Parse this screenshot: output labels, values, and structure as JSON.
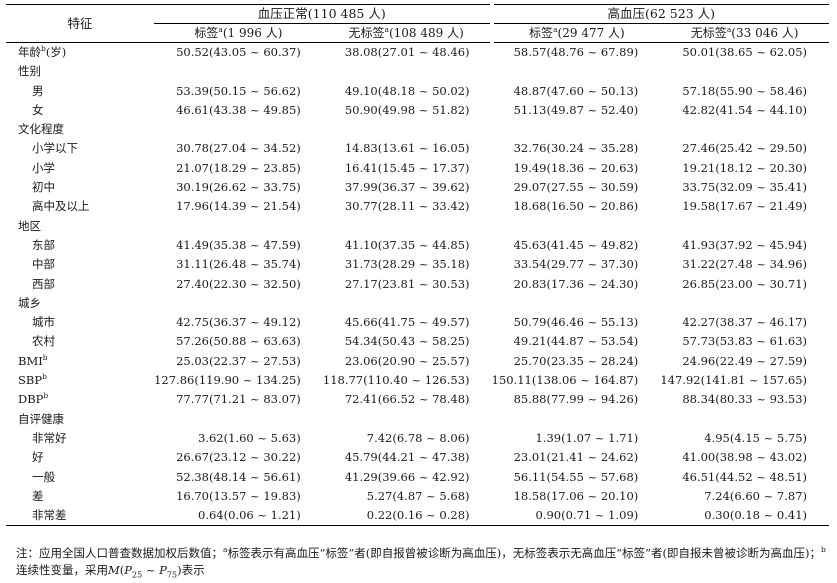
{
  "header": {
    "feature_label": "特征",
    "group_normal": "血压正常(110 485 人)",
    "group_high": "高血压(62 523 人)",
    "sub_cols": [
      {
        "text": "标签",
        "mark": "a",
        "count": "(1 996 人)"
      },
      {
        "text": "无标签",
        "mark": "a",
        "count": "(108 489 人)"
      },
      {
        "text": "标签",
        "mark": "a",
        "count": "(29 477 人)"
      },
      {
        "text": "无标签",
        "mark": "a",
        "count": "(33 046 人)"
      }
    ]
  },
  "rows": [
    {
      "label": "年龄",
      "sup": "b",
      "suffix": "(岁)",
      "indent": false,
      "values": [
        "50.52(43.05 ~ 60.37)",
        "38.08(27.01 ~ 48.46)",
        "58.57(48.76 ~ 67.89)",
        "50.01(38.65 ~ 62.05)"
      ]
    },
    {
      "label": "性别",
      "sup": "",
      "suffix": "",
      "indent": false,
      "values": [
        "",
        "",
        "",
        ""
      ]
    },
    {
      "label": "男",
      "sup": "",
      "suffix": "",
      "indent": true,
      "values": [
        "53.39(50.15 ~ 56.62)",
        "49.10(48.18 ~ 50.02)",
        "48.87(47.60 ~ 50.13)",
        "57.18(55.90 ~ 58.46)"
      ]
    },
    {
      "label": "女",
      "sup": "",
      "suffix": "",
      "indent": true,
      "values": [
        "46.61(43.38 ~ 49.85)",
        "50.90(49.98 ~ 51.82)",
        "51.13(49.87 ~ 52.40)",
        "42.82(41.54 ~ 44.10)"
      ]
    },
    {
      "label": "文化程度",
      "sup": "",
      "suffix": "",
      "indent": false,
      "values": [
        "",
        "",
        "",
        ""
      ]
    },
    {
      "label": "小学以下",
      "sup": "",
      "suffix": "",
      "indent": true,
      "values": [
        "30.78(27.04 ~ 34.52)",
        "14.83(13.61 ~ 16.05)",
        "32.76(30.24 ~ 35.28)",
        "27.46(25.42 ~ 29.50)"
      ]
    },
    {
      "label": "小学",
      "sup": "",
      "suffix": "",
      "indent": true,
      "values": [
        "21.07(18.29 ~ 23.85)",
        "16.41(15.45 ~ 17.37)",
        "19.49(18.36 ~ 20.63)",
        "19.21(18.12 ~ 20.30)"
      ]
    },
    {
      "label": "初中",
      "sup": "",
      "suffix": "",
      "indent": true,
      "values": [
        "30.19(26.62 ~ 33.75)",
        "37.99(36.37 ~ 39.62)",
        "29.07(27.55 ~ 30.59)",
        "33.75(32.09 ~ 35.41)"
      ]
    },
    {
      "label": "高中及以上",
      "sup": "",
      "suffix": "",
      "indent": true,
      "values": [
        "17.96(14.39 ~ 21.54)",
        "30.77(28.11 ~ 33.42)",
        "18.68(16.50 ~ 20.86)",
        "19.58(17.67 ~ 21.49)"
      ]
    },
    {
      "label": "地区",
      "sup": "",
      "suffix": "",
      "indent": false,
      "values": [
        "",
        "",
        "",
        ""
      ]
    },
    {
      "label": "东部",
      "sup": "",
      "suffix": "",
      "indent": true,
      "values": [
        "41.49(35.38 ~ 47.59)",
        "41.10(37.35 ~ 44.85)",
        "45.63(41.45 ~ 49.82)",
        "41.93(37.92 ~ 45.94)"
      ]
    },
    {
      "label": "中部",
      "sup": "",
      "suffix": "",
      "indent": true,
      "values": [
        "31.11(26.48 ~ 35.74)",
        "31.73(28.29 ~ 35.18)",
        "33.54(29.77 ~ 37.30)",
        "31.22(27.48 ~ 34.96)"
      ]
    },
    {
      "label": "西部",
      "sup": "",
      "suffix": "",
      "indent": true,
      "values": [
        "27.40(22.30 ~ 32.50)",
        "27.17(23.81 ~ 30.53)",
        "20.83(17.36 ~ 24.30)",
        "26.85(23.00 ~ 30.71)"
      ]
    },
    {
      "label": "城乡",
      "sup": "",
      "suffix": "",
      "indent": false,
      "values": [
        "",
        "",
        "",
        ""
      ]
    },
    {
      "label": "城市",
      "sup": "",
      "suffix": "",
      "indent": true,
      "values": [
        "42.75(36.37 ~ 49.12)",
        "45.66(41.75 ~ 49.57)",
        "50.79(46.46 ~ 55.13)",
        "42.27(38.37 ~ 46.17)"
      ]
    },
    {
      "label": "农村",
      "sup": "",
      "suffix": "",
      "indent": true,
      "values": [
        "57.26(50.88 ~ 63.63)",
        "54.34(50.43 ~ 58.25)",
        "49.21(44.87 ~ 53.54)",
        "57.73(53.83 ~ 61.63)"
      ]
    },
    {
      "label": "BMI",
      "sup": "b",
      "suffix": "",
      "indent": false,
      "values": [
        "25.03(22.37 ~ 27.53)",
        "23.06(20.90 ~ 25.57)",
        "25.70(23.35 ~ 28.24)",
        "24.96(22.49 ~ 27.59)"
      ]
    },
    {
      "label": "SBP",
      "sup": "b",
      "suffix": "",
      "indent": false,
      "values": [
        "127.86(119.90 ~ 134.25)",
        "118.77(110.40 ~ 126.53)",
        "150.11(138.06 ~ 164.87)",
        "147.92(141.81 ~ 157.65)"
      ]
    },
    {
      "label": "DBP",
      "sup": "b",
      "suffix": "",
      "indent": false,
      "values": [
        "77.77(71.21 ~ 83.07)",
        "72.41(66.52 ~ 78.48)",
        "85.88(77.99 ~ 94.26)",
        "88.34(80.33 ~ 93.53)"
      ]
    },
    {
      "label": "自评健康",
      "sup": "",
      "suffix": "",
      "indent": false,
      "values": [
        "",
        "",
        "",
        ""
      ]
    },
    {
      "label": "非常好",
      "sup": "",
      "suffix": "",
      "indent": true,
      "values": [
        "3.62(1.60 ~ 5.63)",
        "7.42(6.78 ~ 8.06)",
        "1.39(1.07 ~ 1.71)",
        "4.95(4.15 ~ 5.75)"
      ]
    },
    {
      "label": "好",
      "sup": "",
      "suffix": "",
      "indent": true,
      "values": [
        "26.67(23.12 ~ 30.22)",
        "45.79(44.21 ~ 47.38)",
        "23.01(21.41 ~ 24.62)",
        "41.00(38.98 ~ 43.02)"
      ]
    },
    {
      "label": "一般",
      "sup": "",
      "suffix": "",
      "indent": true,
      "values": [
        "52.38(48.14 ~ 56.61)",
        "41.29(39.66 ~ 42.92)",
        "56.11(54.55 ~ 57.68)",
        "46.51(44.52 ~ 48.51)"
      ]
    },
    {
      "label": "差",
      "sup": "",
      "suffix": "",
      "indent": true,
      "values": [
        "16.70(13.57 ~ 19.83)",
        "5.27(4.87 ~ 5.68)",
        "18.58(17.06 ~ 20.10)",
        "7.24(6.60 ~ 7.87)"
      ]
    },
    {
      "label": "非常差",
      "sup": "",
      "suffix": "",
      "indent": true,
      "values": [
        "0.64(0.06 ~ 1.21)",
        "0.22(0.16 ~ 0.28)",
        "0.90(0.71 ~ 1.09)",
        "0.30(0.18 ~ 0.41)"
      ]
    }
  ],
  "note": {
    "line1_a": "注：应用全国人口普查数据加权后数值；",
    "sup_a": "a",
    "line1_b": "标签表示有高血压“标签”者(即自报曾被诊断为高血压)，无标签表示无高血压“标签”者(即自报未曾被诊断为高血压)；",
    "sup_b": "b",
    "line2_a": "连续性变量，采用",
    "m_italic": "M",
    "p25": "P",
    "p25_sub": "25",
    "tilde": " ~ ",
    "p75": "P",
    "p75_sub": "75",
    "line2_b": "表示"
  }
}
